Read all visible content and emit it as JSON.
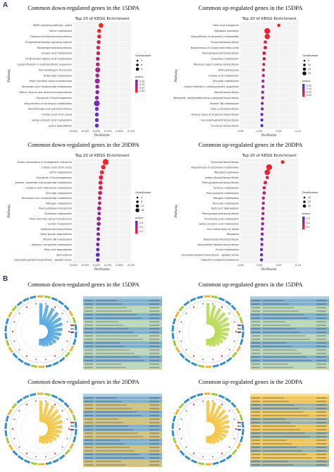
{
  "figure": {
    "panel_a_label": "A",
    "panel_b_label": "B"
  },
  "panel_a": {
    "titles": [
      "Common down-regulated genes in the 15DPA",
      "Common up-regulated genes in the 15DPA",
      "Common down-regulated genes in the 20DPA",
      "Common up-regulated genes in the 20DPA"
    ]
  },
  "panel_b": {
    "titles": [
      "Common down-regulated genes in the 15DPA",
      "Common up-regulated genes in the 15DPA",
      "Common down-regulated genes in the 20DPA",
      "Common up-regulated genes in the 20DPA"
    ]
  },
  "colors": {
    "dot_high": "#ff1f1f",
    "dot_low": "#5b2bd6",
    "circos_blue": "#4aa3df",
    "circos_green": "#b6d94c",
    "circos_yellow": "#f2c23a",
    "table_blue": "#6ea7c8",
    "table_yellow": "#f0bd3c",
    "table_green": "#c8dd9a"
  },
  "chart_data": [
    {
      "type": "scatter",
      "title": "Top 20 of KEGG Enrichment",
      "xlabel": "RichFactor",
      "ylabel": "Pathway",
      "xlim": [
        -0.05,
        0.075
      ],
      "xticks": [
        "-0.050",
        "-0.025",
        "0.000",
        "0.025",
        "0.050",
        "0.075"
      ],
      "size_legend": {
        "title": "GeneNumber",
        "values": [
          "3",
          "6",
          "9"
        ]
      },
      "color_legend": {
        "title": "pvalue",
        "values": [
          "0.20",
          "0.15",
          "0.10",
          "0.05"
        ]
      },
      "categories": [
        "MAPK signaling pathway - plant",
        "Sulfur metabolism",
        "Flavone and flavonol biosynthesis",
        "Phosphatidylinositol signaling system",
        "Monoterpenoid biosynthesis",
        "Linoleic acid metabolism",
        "C5-Branched dibasic acid metabolism",
        "Carbon fixation in photosynthetic organisms",
        "Plant-pathogen interaction",
        "Butanoate metabolism",
        "Plant hormone signal transduction",
        "Nicotinate and nicotinamide metabolism",
        "Valine, leucine and isoleucine biosynthesis",
        "Glycolysis / Gluconeogenesis",
        "Biosynthesis of secondary metabolites",
        "Pantothenate and CoA biosynthesis",
        "Citrate cycle (TCA cycle)",
        "alpha-Linolenic acid metabolism",
        "Lysine degradation"
      ],
      "values": [
        0.01,
        0.006,
        0.006,
        0.005,
        0.004,
        0.004,
        0.003,
        0.003,
        0.003,
        0.002,
        0.002,
        0.002,
        0.002,
        0.001,
        0.001,
        0.001,
        0.001,
        0.001,
        0.001
      ],
      "sizes": [
        5,
        3,
        3,
        3,
        3,
        3,
        3,
        3,
        6,
        3,
        6,
        3,
        3,
        3,
        9,
        3,
        3,
        3,
        3
      ],
      "pvalues": [
        0.05,
        0.06,
        0.07,
        0.1,
        0.1,
        0.12,
        0.14,
        0.14,
        0.15,
        0.15,
        0.16,
        0.17,
        0.18,
        0.19,
        0.2,
        0.2,
        0.21,
        0.22,
        0.23
      ]
    },
    {
      "type": "scatter",
      "title": "Top 20 of KEGG Enrichment",
      "xlabel": "RichFactor",
      "ylabel": "Pathway",
      "xlim": [
        -0.05,
        0.1
      ],
      "xticks": [
        "-0.05",
        "0.00",
        "0.05",
        "0.10"
      ],
      "size_legend": {
        "title": "GeneNumber",
        "values": [
          "5",
          "10",
          "15",
          "20"
        ]
      },
      "color_legend": {
        "title": "pvalue",
        "values": [
          "0.20",
          "0.15",
          "0.10",
          "0.05"
        ]
      },
      "categories": [
        "Fatty acid elongation",
        "Metabolic pathways",
        "Biosynthesis of secondary metabolites",
        "Flavonoid biosynthesis",
        "Biosynthesis of unsaturated fatty acids",
        "Phenylpropanoid biosynthesis",
        "Galactose metabolism",
        "Mannose type O-glycan biosynthesis",
        "RNA polymerase",
        "Linoleic acid metabolism",
        "Pyruvate metabolism",
        "Carbon fixation in photosynthetic organisms",
        "Steroid biosynthesis",
        "Stilbenoid, diarylheptanoid and gingerol biosynthesis",
        "Vitamin B6 metabolism",
        "Fatty acid biosynthesis",
        "Various types of N-glycan biosynthesis",
        "Glycosphingolipid biosynthesis",
        "N-Glycan biosynthesis"
      ],
      "values": [
        0.05,
        0.02,
        0.02,
        0.015,
        0.015,
        0.012,
        0.012,
        0.011,
        0.01,
        0.01,
        0.009,
        0.009,
        0.008,
        0.008,
        0.007,
        0.007,
        0.006,
        0.006,
        0.006
      ],
      "sizes": [
        4,
        20,
        15,
        4,
        5,
        5,
        4,
        3,
        3,
        3,
        3,
        3,
        3,
        3,
        3,
        3,
        3,
        3,
        3
      ],
      "pvalues": [
        0.03,
        0.05,
        0.05,
        0.06,
        0.07,
        0.08,
        0.09,
        0.1,
        0.11,
        0.12,
        0.13,
        0.14,
        0.15,
        0.16,
        0.17,
        0.18,
        0.19,
        0.2,
        0.21
      ]
    },
    {
      "type": "scatter",
      "title": "Top 20 of KEGG Enrichment",
      "xlabel": "RichFactor",
      "ylabel": "Pathway",
      "xlim": [
        -0.05,
        0.075
      ],
      "xticks": [
        "-0.050",
        "-0.025",
        "0.000",
        "0.025",
        "0.050",
        "0.075"
      ],
      "size_legend": {
        "title": "GeneNumber",
        "values": [
          "4",
          "8",
          "12",
          "16"
        ]
      },
      "color_legend": {
        "title": "pvalue",
        "values": [
          "0.3",
          "0.2",
          "0.1"
        ]
      },
      "categories": [
        "Protein processing in endoplasmic reticulum",
        "Citrate cycle (TCA cycle)",
        "Sulfur metabolism",
        "Glycolysis / Gluconeogenesis",
        "Alanine, aspartate and glutamate metabolism",
        "Cysteine and methionine metabolism",
        "Pyruvate metabolism",
        "Nicotinate and nicotinamide metabolism",
        "Nitrogen metabolism",
        "Plant-pathogen interaction",
        "Galactose metabolism",
        "Plant hormone signal transduction",
        "Carbon metabolism",
        "Isoflavonoid biosynthesis",
        "Other glycan degradation",
        "Vitamin B6 metabolism",
        "Arginine and proline metabolism",
        "Fatty acid degradation",
        "Spliceosome",
        "Glycosphingolipid biosynthesis - ganglio series"
      ],
      "values": [
        0.02,
        0.015,
        0.012,
        0.01,
        0.009,
        0.009,
        0.008,
        0.007,
        0.007,
        0.006,
        0.006,
        0.005,
        0.005,
        0.004,
        0.004,
        0.004,
        0.003,
        0.003,
        0.003,
        0.003
      ],
      "sizes": [
        16,
        8,
        6,
        8,
        6,
        6,
        6,
        4,
        4,
        6,
        4,
        6,
        6,
        4,
        4,
        4,
        4,
        4,
        6,
        4
      ],
      "pvalues": [
        0.03,
        0.05,
        0.07,
        0.08,
        0.1,
        0.12,
        0.13,
        0.14,
        0.16,
        0.17,
        0.18,
        0.2,
        0.21,
        0.22,
        0.24,
        0.25,
        0.26,
        0.28,
        0.3,
        0.31
      ]
    },
    {
      "type": "scatter",
      "title": "Top 20 of KEGG Enrichment",
      "xlabel": "RichFactor",
      "ylabel": "Pathway",
      "xlim": [
        -0.05,
        0.1
      ],
      "xticks": [
        "-0.05",
        "0.00",
        "0.05",
        "0.10"
      ],
      "size_legend": {
        "title": "GeneNumber",
        "values": [
          "10",
          "20",
          "30"
        ]
      },
      "color_legend": {
        "title": "pvalue",
        "values": [
          "0.3",
          "0.2",
          "0.1"
        ]
      },
      "categories": [
        "Flavonoid biosynthesis",
        "Biosynthesis of secondary metabolites",
        "Metabolic pathways",
        "Indole alkaloid biosynthesis",
        "Phenylpropanoid biosynthesis",
        "Tyrosine metabolism",
        "Phenylalanine metabolism",
        "Nitrogen metabolism",
        "Pyruvate metabolism",
        "Fatty acid degradation",
        "Phenylpropanoid biosynthesis",
        "Cinnamate acid metabolism",
        "alpha-Linolenic acid metabolism",
        "One carbon pool by folate",
        "Ribosome",
        "Brassinosteroid biosynthesis",
        "Isoquinoline alkaloid biosynthesis",
        "Purine metabolism",
        "Glycosphingolipid biosynthesis - ganglio series",
        "Ubiquitin mediated proteolysis"
      ],
      "values": [
        0.06,
        0.025,
        0.02,
        0.02,
        0.015,
        0.012,
        0.012,
        0.01,
        0.01,
        0.009,
        0.009,
        0.008,
        0.008,
        0.007,
        0.007,
        0.006,
        0.006,
        0.005,
        0.005,
        0.005
      ],
      "sizes": [
        8,
        30,
        25,
        6,
        8,
        6,
        6,
        5,
        5,
        5,
        5,
        5,
        5,
        5,
        5,
        5,
        5,
        5,
        5,
        5
      ],
      "pvalues": [
        0.03,
        0.05,
        0.06,
        0.08,
        0.1,
        0.12,
        0.14,
        0.15,
        0.17,
        0.18,
        0.2,
        0.21,
        0.23,
        0.24,
        0.26,
        0.27,
        0.28,
        0.3,
        0.31,
        0.32
      ]
    }
  ]
}
